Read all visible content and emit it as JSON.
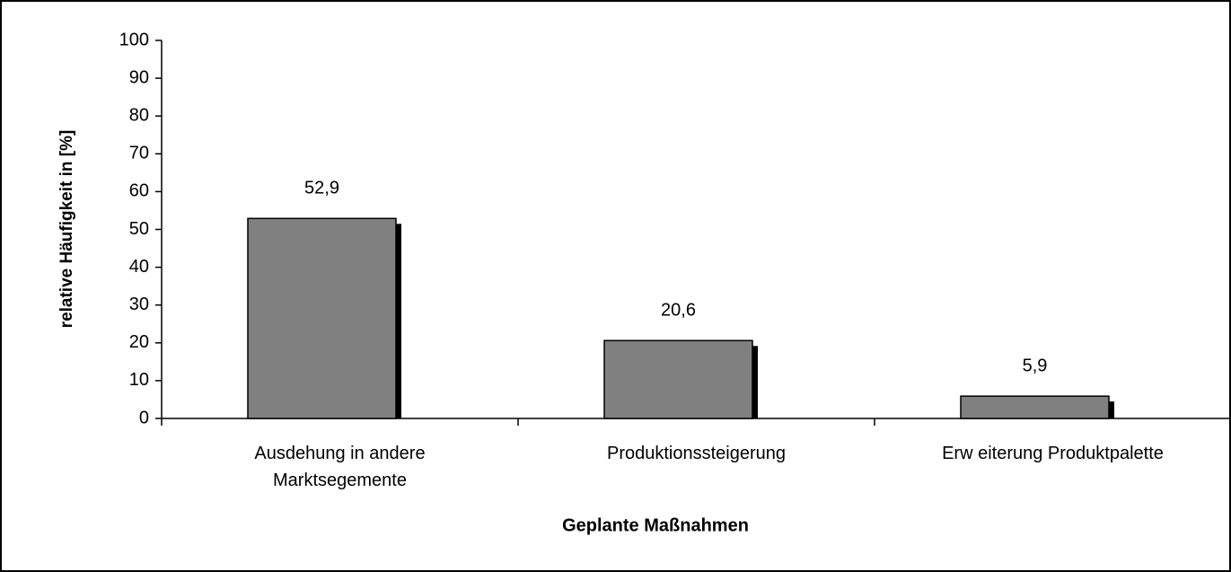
{
  "chart_data": {
    "type": "bar",
    "categories": [
      "Ausdehung in andere\nMarktsegemente",
      "Produktionssteigerung",
      "Erw eiterung Produktpalette"
    ],
    "values": [
      52.9,
      20.6,
      5.9
    ],
    "value_labels": [
      "52,9",
      "20,6",
      "5,9"
    ],
    "color": "#808080",
    "xlabel": "Geplante Maßnahmen",
    "ylabel": "relative Häufigkeit in [%]",
    "ylim": [
      0,
      100
    ],
    "yticks": [
      0,
      10,
      20,
      30,
      40,
      50,
      60,
      70,
      80,
      90,
      100
    ],
    "grid": false
  }
}
